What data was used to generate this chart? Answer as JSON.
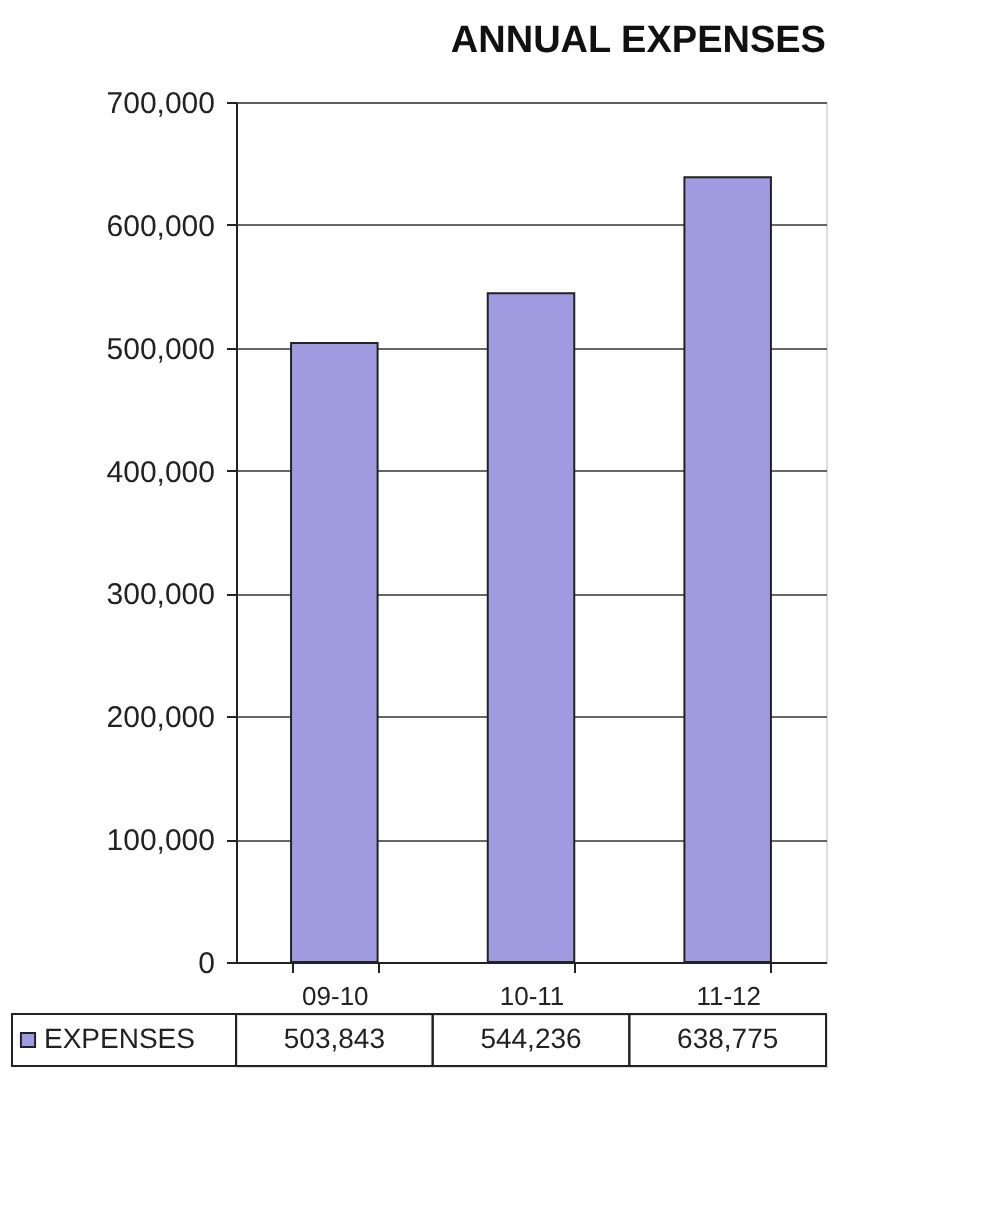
{
  "chart_data": {
    "type": "bar",
    "title": "ANNUAL EXPENSES",
    "categories": [
      "09-10",
      "10-11",
      "11-12"
    ],
    "series": [
      {
        "name": "EXPENSES",
        "color": "#a09ae0",
        "values": [
          503843,
          544236,
          638775
        ]
      }
    ],
    "ylim": [
      0,
      700000
    ],
    "yticks": [
      0,
      {
        "value": 100000,
        "label": "100,000"
      },
      {
        "value": 200000,
        "label": "200,000"
      },
      {
        "value": 300000,
        "label": "300,000"
      },
      {
        "value": 400000,
        "label": "400,000"
      },
      {
        "value": 500000,
        "label": "500,000"
      },
      {
        "value": 600000,
        "label": "600,000"
      },
      {
        "value": 700000,
        "label": "700,000"
      }
    ],
    "grid": "y",
    "legend": "bottom",
    "value_labels": [
      "503,843",
      "544,236",
      "638,775"
    ]
  }
}
